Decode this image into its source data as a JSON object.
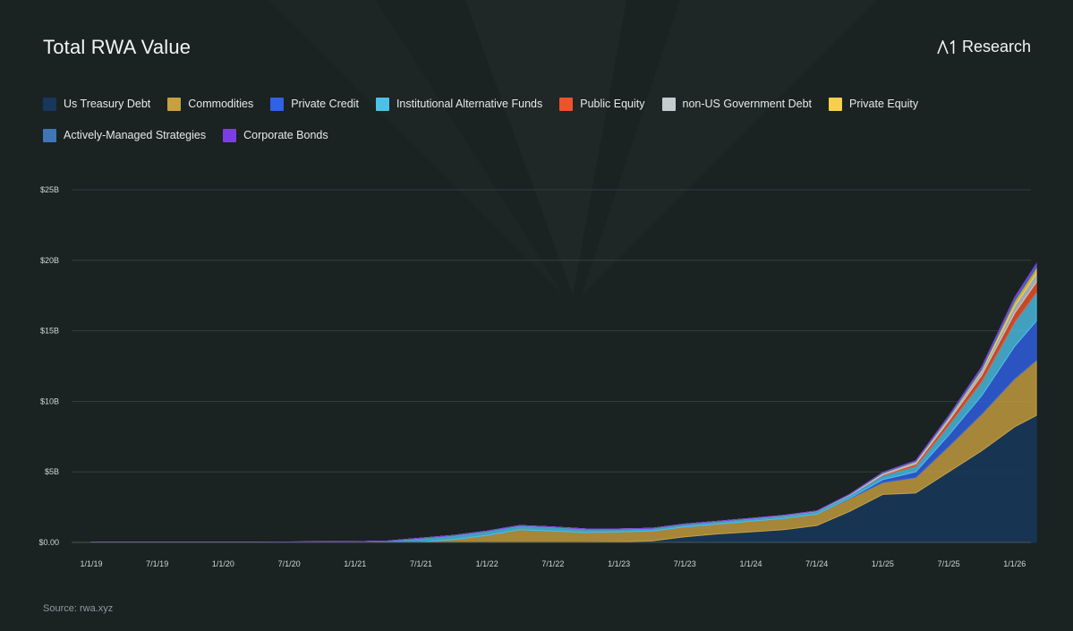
{
  "header": {
    "title": "Total RWA Value",
    "brand": "Research"
  },
  "footer": {
    "source": "Source: rwa.xyz"
  },
  "chart_data": {
    "type": "area",
    "stacked": true,
    "title": "Total RWA Value",
    "xlabel": "",
    "ylabel": "",
    "ylim": [
      0,
      25
    ],
    "y_ticks": [
      {
        "value": 0,
        "label": "$0.00"
      },
      {
        "value": 5,
        "label": "$5B"
      },
      {
        "value": 10,
        "label": "$10B"
      },
      {
        "value": 15,
        "label": "$15B"
      },
      {
        "value": 20,
        "label": "$20B"
      },
      {
        "value": 25,
        "label": "$25B"
      }
    ],
    "x_ticks": [
      "1/1/19",
      "7/1/19",
      "1/1/20",
      "7/1/20",
      "1/1/21",
      "7/1/21",
      "1/1/22",
      "7/1/22",
      "1/1/23",
      "7/1/23",
      "1/1/24",
      "7/1/24",
      "1/1/25",
      "7/1/25",
      "1/1/26"
    ],
    "x": [
      "1/1/19",
      "4/1/19",
      "7/1/19",
      "10/1/19",
      "1/1/20",
      "4/1/20",
      "7/1/20",
      "10/1/20",
      "1/1/21",
      "4/1/21",
      "7/1/21",
      "10/1/21",
      "1/1/22",
      "4/1/22",
      "7/1/22",
      "10/1/22",
      "1/1/23",
      "4/1/23",
      "7/1/23",
      "10/1/23",
      "1/1/24",
      "4/1/24",
      "7/1/24",
      "10/1/24",
      "1/1/25",
      "4/1/25",
      "7/1/25",
      "10/1/25",
      "1/1/26",
      "3/1/26"
    ],
    "grid": true,
    "legend_position": "top",
    "series": [
      {
        "name": "Us Treasury Debt",
        "color": "#17385c",
        "values": [
          0,
          0,
          0,
          0,
          0,
          0,
          0,
          0,
          0,
          0,
          0,
          0,
          0,
          0,
          0,
          0,
          0.05,
          0.1,
          0.4,
          0.6,
          0.75,
          0.9,
          1.2,
          2.2,
          3.4,
          3.5,
          5.0,
          6.5,
          8.2,
          9.0
        ]
      },
      {
        "name": "Commodities",
        "color": "#c9a03e",
        "values": [
          0,
          0,
          0,
          0,
          0,
          0,
          0,
          0,
          0,
          0,
          0,
          0.2,
          0.5,
          0.9,
          0.8,
          0.7,
          0.7,
          0.7,
          0.7,
          0.7,
          0.75,
          0.8,
          0.8,
          0.9,
          0.85,
          1.1,
          1.8,
          2.6,
          3.4,
          3.9
        ]
      },
      {
        "name": "Private Credit",
        "color": "#2f62e8",
        "values": [
          0,
          0,
          0,
          0,
          0,
          0,
          0,
          0,
          0,
          0,
          0,
          0,
          0,
          0,
          0,
          0,
          0,
          0,
          0,
          0,
          0,
          0,
          0,
          0.05,
          0.2,
          0.4,
          0.8,
          1.3,
          2.3,
          2.8
        ]
      },
      {
        "name": "Institutional Alternative Funds",
        "color": "#4bc1e6",
        "values": [
          0.01,
          0.01,
          0.01,
          0.02,
          0.02,
          0.02,
          0.03,
          0.04,
          0.05,
          0.1,
          0.3,
          0.3,
          0.3,
          0.3,
          0.3,
          0.25,
          0.2,
          0.2,
          0.2,
          0.2,
          0.2,
          0.2,
          0.2,
          0.2,
          0.3,
          0.4,
          0.7,
          1.0,
          1.7,
          2.0
        ]
      },
      {
        "name": "Public Equity",
        "color": "#f0522b",
        "values": [
          0,
          0,
          0,
          0,
          0,
          0,
          0,
          0,
          0,
          0,
          0,
          0,
          0,
          0,
          0,
          0,
          0,
          0,
          0,
          0,
          0,
          0,
          0,
          0,
          0.05,
          0.15,
          0.3,
          0.45,
          0.65,
          0.75
        ]
      },
      {
        "name": "non-US Government Debt",
        "color": "#c3ccd0",
        "values": [
          0,
          0,
          0,
          0,
          0,
          0,
          0,
          0,
          0,
          0,
          0,
          0,
          0,
          0,
          0,
          0,
          0,
          0,
          0,
          0,
          0.01,
          0.02,
          0.03,
          0.05,
          0.1,
          0.15,
          0.2,
          0.3,
          0.5,
          0.6
        ]
      },
      {
        "name": "Private Equity",
        "color": "#f7cf4b",
        "values": [
          0,
          0,
          0,
          0,
          0,
          0,
          0,
          0,
          0,
          0,
          0,
          0,
          0,
          0,
          0,
          0,
          0,
          0,
          0,
          0,
          0,
          0,
          0,
          0,
          0.01,
          0.03,
          0.05,
          0.1,
          0.35,
          0.4
        ]
      },
      {
        "name": "Actively-Managed Strategies",
        "color": "#3f76b3",
        "values": [
          0,
          0,
          0,
          0,
          0,
          0,
          0,
          0,
          0,
          0,
          0,
          0,
          0,
          0,
          0,
          0,
          0,
          0,
          0,
          0,
          0,
          0,
          0,
          0.02,
          0.05,
          0.05,
          0.1,
          0.15,
          0.2,
          0.2
        ]
      },
      {
        "name": "Corporate Bonds",
        "color": "#7b3fe0",
        "values": [
          0,
          0,
          0,
          0,
          0,
          0,
          0,
          0,
          0,
          0,
          0,
          0,
          0,
          0,
          0,
          0,
          0,
          0,
          0,
          0,
          0,
          0,
          0,
          0,
          0.01,
          0.02,
          0.03,
          0.05,
          0.08,
          0.1
        ]
      }
    ]
  }
}
